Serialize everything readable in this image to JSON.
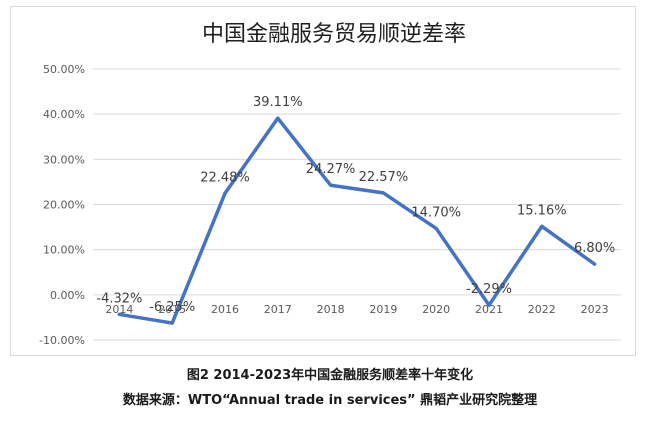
{
  "chart_data": {
    "type": "line",
    "title": "中国金融服务贸易顺逆差率",
    "categories": [
      "2014",
      "2015",
      "2016",
      "2017",
      "2018",
      "2019",
      "2020",
      "2021",
      "2022",
      "2023"
    ],
    "series": [
      {
        "values": [
          -4.32,
          -6.25,
          22.48,
          39.11,
          24.27,
          22.57,
          14.7,
          -2.29,
          15.16,
          6.8
        ],
        "labels": [
          "-4.32%",
          "-6.25%",
          "22.48%",
          "39.11%",
          "24.27%",
          "22.57%",
          "14.70%",
          "-2.29%",
          "15.16%",
          "6.80%"
        ],
        "color": "#4472c4"
      }
    ],
    "yticks": [
      50,
      40,
      30,
      20,
      10,
      0,
      -10
    ],
    "ytick_labels": [
      "50.00%",
      "40.00%",
      "30.00%",
      "20.00%",
      "10.00%",
      "0.00%",
      "-10.00%"
    ],
    "ylim": [
      -10,
      50
    ],
    "grid": true,
    "legend": "none"
  },
  "captions": {
    "figure": "图2 2014-2023年中国金融服务顺差率十年变化",
    "source": "数据来源：WTO“Annual trade in services” 鼎韬产业研究院整理"
  },
  "colors": {
    "line": "#4472c4",
    "grid": "#d9d9d9",
    "text": "#595959"
  }
}
